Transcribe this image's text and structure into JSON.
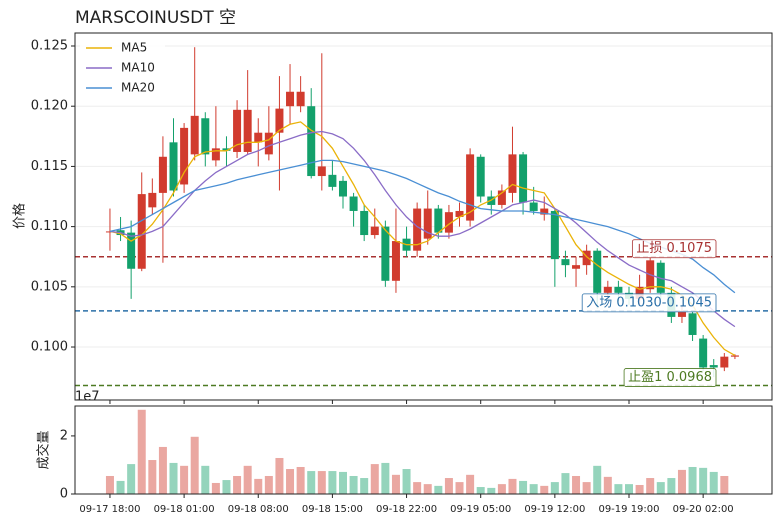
{
  "chart_data": {
    "type": "candlestick",
    "title": "MARSCOINUSDT  空",
    "ylabel": "价格",
    "volume_ylabel": "成交量",
    "volume_offset_label": "1e7",
    "up_color": "#d13b2e",
    "down_color": "#13a06b",
    "grid": true,
    "legend": "upper left",
    "xlim": [
      -3.3,
      62.5
    ],
    "ylim": [
      0.0956,
      0.12608
    ],
    "yticks": [
      {
        "value": 0.1,
        "label": "0.100"
      },
      {
        "value": 0.105,
        "label": "0.105"
      },
      {
        "value": 0.11,
        "label": "0.110"
      },
      {
        "value": 0.115,
        "label": "0.115"
      },
      {
        "value": 0.12,
        "label": "0.120"
      },
      {
        "value": 0.125,
        "label": "0.125"
      }
    ],
    "volume_ylim": [
      0,
      3.03
    ],
    "volume_yticks": [
      0,
      2
    ],
    "xticks": [
      {
        "value": 0,
        "label": "09-17 18:00"
      },
      {
        "value": 7,
        "label": "09-18 01:00"
      },
      {
        "value": 14,
        "label": "09-18 08:00"
      },
      {
        "value": 21,
        "label": "09-18 15:00"
      },
      {
        "value": 28,
        "label": "09-18 22:00"
      },
      {
        "value": 35,
        "label": "09-19 05:00"
      },
      {
        "value": 42,
        "label": "09-19 12:00"
      },
      {
        "value": 49,
        "label": "09-19 19:00"
      },
      {
        "value": 56,
        "label": "09-20 02:00"
      }
    ],
    "open": [
      0.1096,
      0.1097,
      0.1095,
      0.1065,
      0.1116,
      0.1128,
      0.117,
      0.1135,
      0.116,
      0.119,
      0.1155,
      0.1165,
      0.1162,
      0.1162,
      0.117,
      0.116,
      0.1178,
      0.12,
      0.12,
      0.12,
      0.1142,
      0.1143,
      0.1138,
      0.1125,
      0.1113,
      0.1093,
      0.11,
      0.1055,
      0.109,
      0.108,
      0.109,
      0.1115,
      0.1095,
      0.1108,
      0.1105,
      0.1158,
      0.1125,
      0.1118,
      0.1128,
      0.116,
      0.112,
      0.111,
      0.1113,
      0.1073,
      0.1065,
      0.1068,
      0.108,
      0.1045,
      0.105,
      0.1045,
      0.104,
      0.1048,
      0.107,
      0.1045,
      0.1025,
      0.1028,
      0.1007,
      0.0985,
      0.0983,
      0.0992
    ],
    "high": [
      0.1115,
      0.1108,
      0.1105,
      0.1145,
      0.114,
      0.1175,
      0.119,
      0.1186,
      0.1249,
      0.1195,
      0.12,
      0.1175,
      0.1205,
      0.123,
      0.119,
      0.12,
      0.1225,
      0.1235,
      0.1225,
      0.1215,
      0.1244,
      0.1155,
      0.1142,
      0.1128,
      0.1118,
      0.1115,
      0.1105,
      0.1115,
      0.11,
      0.112,
      0.113,
      0.1118,
      0.1118,
      0.112,
      0.1165,
      0.116,
      0.113,
      0.1135,
      0.1183,
      0.1162,
      0.1133,
      0.1125,
      0.1115,
      0.108,
      0.1075,
      0.1085,
      0.1082,
      0.1055,
      0.1055,
      0.105,
      0.106,
      0.1075,
      0.1072,
      0.105,
      0.1035,
      0.103,
      0.101,
      0.099,
      0.0995,
      0.0994
    ],
    "low": [
      0.108,
      0.1088,
      0.104,
      0.1063,
      0.111,
      0.107,
      0.1125,
      0.1128,
      0.1155,
      0.115,
      0.115,
      0.115,
      0.1157,
      0.116,
      0.115,
      0.1155,
      0.113,
      0.1185,
      0.1195,
      0.114,
      0.113,
      0.113,
      0.1115,
      0.11,
      0.1088,
      0.109,
      0.105,
      0.1045,
      0.1075,
      0.1075,
      0.1085,
      0.109,
      0.109,
      0.11,
      0.11,
      0.112,
      0.111,
      0.1115,
      0.112,
      0.111,
      0.111,
      0.1105,
      0.105,
      0.1058,
      0.105,
      0.106,
      0.1032,
      0.104,
      0.1038,
      0.1035,
      0.1035,
      0.1045,
      0.104,
      0.102,
      0.102,
      0.1005,
      0.098,
      0.0975,
      0.098,
      0.099
    ],
    "close": [
      0.1096,
      0.1093,
      0.1065,
      0.1127,
      0.1128,
      0.1158,
      0.113,
      0.1182,
      0.1192,
      0.116,
      0.1165,
      0.1163,
      0.1197,
      0.1197,
      0.1178,
      0.1178,
      0.1198,
      0.1212,
      0.1212,
      0.1142,
      0.115,
      0.1133,
      0.1125,
      0.1113,
      0.1093,
      0.11,
      0.1055,
      0.1088,
      0.108,
      0.1115,
      0.1115,
      0.1095,
      0.1112,
      0.1113,
      0.116,
      0.1125,
      0.1118,
      0.113,
      0.116,
      0.112,
      0.1113,
      0.1115,
      0.1073,
      0.1068,
      0.1068,
      0.108,
      0.1045,
      0.105,
      0.1045,
      0.104,
      0.105,
      0.1072,
      0.1045,
      0.1025,
      0.103,
      0.101,
      0.0983,
      0.0983,
      0.0992,
      0.0993
    ],
    "volume": [
      0.62,
      0.45,
      1.03,
      2.9,
      1.17,
      1.62,
      1.07,
      0.97,
      1.97,
      0.97,
      0.38,
      0.48,
      0.62,
      0.97,
      0.52,
      0.62,
      1.24,
      0.86,
      0.93,
      0.79,
      0.79,
      0.79,
      0.76,
      0.62,
      0.55,
      1.03,
      1.07,
      0.66,
      0.86,
      0.41,
      0.34,
      0.28,
      0.55,
      0.41,
      0.66,
      0.24,
      0.21,
      0.34,
      0.52,
      0.45,
      0.34,
      0.28,
      0.41,
      0.72,
      0.62,
      0.41,
      0.97,
      0.59,
      0.34,
      0.34,
      0.31,
      0.55,
      0.41,
      0.55,
      0.83,
      0.93,
      0.9,
      0.76,
      0.62,
      0
    ],
    "series": [
      {
        "name": "MA5",
        "color": "#eab308",
        "values": [
          0.1096,
          0.1094,
          0.1088,
          0.1093,
          0.1102,
          0.1114,
          0.1128,
          0.1145,
          0.1158,
          0.1162,
          0.1163,
          0.1163,
          0.1168,
          0.117,
          0.117,
          0.1172,
          0.118,
          0.1185,
          0.1187,
          0.118,
          0.1175,
          0.1165,
          0.115,
          0.1135,
          0.1118,
          0.1108,
          0.1097,
          0.1088,
          0.1085,
          0.1085,
          0.1088,
          0.1095,
          0.1102,
          0.1108,
          0.1112,
          0.1118,
          0.1122,
          0.1128,
          0.1135,
          0.1132,
          0.113,
          0.1128,
          0.1115,
          0.11,
          0.1085,
          0.1075,
          0.1068,
          0.1062,
          0.1057,
          0.1052,
          0.1048,
          0.105,
          0.105,
          0.1048,
          0.1043,
          0.1035,
          0.102,
          0.1008,
          0.0998,
          0.0993
        ]
      },
      {
        "name": "MA10",
        "color": "#8a6cc7",
        "values": [
          0.1096,
          0.1095,
          0.1092,
          0.1093,
          0.1096,
          0.11,
          0.111,
          0.112,
          0.113,
          0.1138,
          0.1145,
          0.115,
          0.1155,
          0.116,
          0.1163,
          0.1167,
          0.117,
          0.1173,
          0.1176,
          0.1178,
          0.1179,
          0.1177,
          0.1173,
          0.1165,
          0.1155,
          0.1143,
          0.113,
          0.1118,
          0.1108,
          0.11,
          0.1095,
          0.1092,
          0.1092,
          0.1094,
          0.1098,
          0.1103,
          0.1108,
          0.1113,
          0.1118,
          0.112,
          0.1122,
          0.112,
          0.1115,
          0.111,
          0.1103,
          0.1095,
          0.1087,
          0.108,
          0.1074,
          0.1068,
          0.1064,
          0.106,
          0.1057,
          0.1055,
          0.105,
          0.1045,
          0.1038,
          0.103,
          0.1023,
          0.1017
        ]
      },
      {
        "name": "MA20",
        "color": "#4a8fd4",
        "values": [
          0.1096,
          0.1098,
          0.11,
          0.1105,
          0.111,
          0.1115,
          0.112,
          0.1125,
          0.113,
          0.1132,
          0.1134,
          0.1136,
          0.1139,
          0.1141,
          0.1143,
          0.1145,
          0.1147,
          0.1149,
          0.1151,
          0.1153,
          0.1155,
          0.1155,
          0.1154,
          0.1152,
          0.115,
          0.1148,
          0.1146,
          0.1143,
          0.114,
          0.1136,
          0.1132,
          0.1128,
          0.1125,
          0.1121,
          0.1118,
          0.1115,
          0.1114,
          0.1113,
          0.1113,
          0.1113,
          0.1112,
          0.1111,
          0.111,
          0.1108,
          0.1106,
          0.1104,
          0.1102,
          0.11,
          0.1097,
          0.1094,
          0.109,
          0.1086,
          0.1083,
          0.108,
          0.1077,
          0.1073,
          0.1066,
          0.106,
          0.1052,
          0.1045
        ]
      }
    ],
    "levels": [
      {
        "value": 0.1075,
        "label": "止损 0.1075",
        "color": "#a83232"
      },
      {
        "value": 0.103,
        "label": "入场 0.1030-0.1045",
        "color": "#2a6fa8"
      },
      {
        "value": 0.0968,
        "label": "止盈1 0.0968",
        "color": "#4d7a22"
      }
    ]
  }
}
